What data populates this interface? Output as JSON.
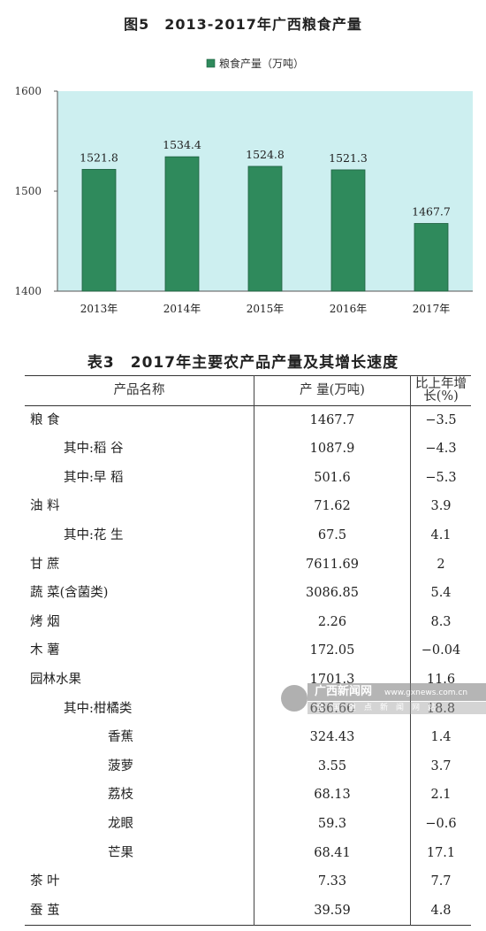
{
  "figure": {
    "title": "图5　2013-2017年广西粮食产量"
  },
  "chart_data": {
    "type": "bar",
    "title": "图5　2013-2017年广西粮食产量",
    "categories": [
      "2013年",
      "2014年",
      "2015年",
      "2016年",
      "2017年"
    ],
    "series": [
      {
        "name": "粮食产量（万吨）",
        "values": [
          1521.8,
          1534.4,
          1524.8,
          1521.3,
          1467.7
        ]
      }
    ],
    "value_labels": [
      "1521.8",
      "1534.4",
      "1524.8",
      "1521.3",
      "1467.7"
    ],
    "ylim": [
      1400,
      1600
    ],
    "yticks": [
      "1400",
      "1500",
      "1600"
    ],
    "xlabel": "",
    "ylabel": "",
    "legend_position": "top-center",
    "grid": false,
    "colors": {
      "bar": "#2f8a5c",
      "plot_bg": "#cdeff0",
      "bar_edge": "#1d5e3e"
    }
  },
  "table": {
    "title": "表3　2017年主要农产品产量及其增长速度",
    "headers": [
      "产品名称",
      "产 量(万吨)",
      "比上年增长(%)"
    ],
    "rows": [
      {
        "name": "粮 食",
        "level": 0,
        "value": "1467.7",
        "growth": "−3.5"
      },
      {
        "name": "其中:稻 谷",
        "level": 1,
        "value": "1087.9",
        "growth": "−4.3"
      },
      {
        "name": "其中:早 稻",
        "level": 1,
        "value": "501.6",
        "growth": "−5.3"
      },
      {
        "name": "油 料",
        "level": 0,
        "value": "71.62",
        "growth": "3.9"
      },
      {
        "name": "其中:花 生",
        "level": 1,
        "value": "67.5",
        "growth": "4.1"
      },
      {
        "name": "甘 蔗",
        "level": 0,
        "value": "7611.69",
        "growth": "2"
      },
      {
        "name": "蔬 菜(含菌类)",
        "level": 0,
        "value": "3086.85",
        "growth": "5.4"
      },
      {
        "name": "烤 烟",
        "level": 0,
        "value": "2.26",
        "growth": "8.3"
      },
      {
        "name": "木 薯",
        "level": 0,
        "value": "172.05",
        "growth": "−0.04"
      },
      {
        "name": "园林水果",
        "level": 0,
        "value": "1701.3",
        "growth": "11.6"
      },
      {
        "name": "其中:柑橘类",
        "level": 1,
        "value": "686.66",
        "growth": "18.8"
      },
      {
        "name": "香蕉",
        "level": 2,
        "value": "324.43",
        "growth": "1.4"
      },
      {
        "name": "菠萝",
        "level": 2,
        "value": "3.55",
        "growth": "3.7"
      },
      {
        "name": "荔枝",
        "level": 2,
        "value": "68.13",
        "growth": "2.1"
      },
      {
        "name": "龙眼",
        "level": 2,
        "value": "59.3",
        "growth": "−0.6"
      },
      {
        "name": "芒果",
        "level": 2,
        "value": "68.41",
        "growth": "17.1"
      },
      {
        "name": "茶 叶",
        "level": 0,
        "value": "7.33",
        "growth": "7.7"
      },
      {
        "name": "蚕 茧",
        "level": 0,
        "value": "39.59",
        "growth": "4.8"
      }
    ]
  },
  "watermark": {
    "name": "广西新闻网",
    "url": "www.gxnews.com.cn",
    "slogan": "全国重点新闻网站"
  }
}
